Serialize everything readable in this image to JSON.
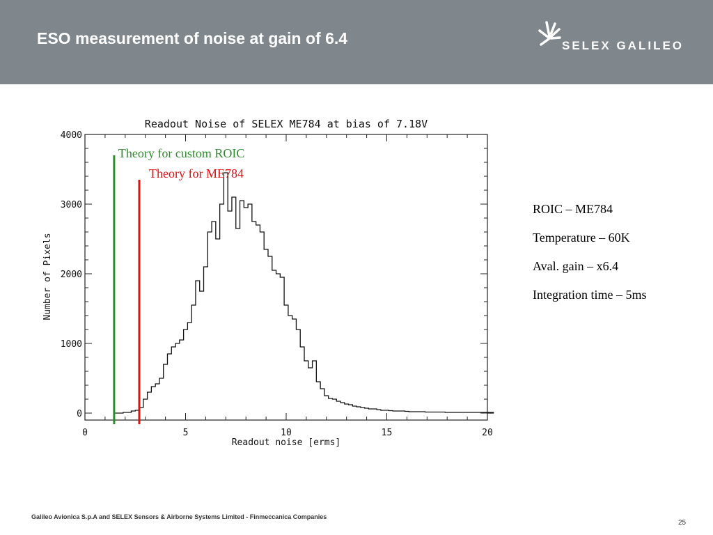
{
  "slide": {
    "title": "ESO measurement of noise at gain of 6.4",
    "logo_text": "SELEX GALILEO",
    "info_lines": [
      "ROIC – ME784",
      "Temperature – 60K",
      "Aval. gain – x6.4",
      "Integration time – 5ms"
    ],
    "footer": "Galileo Avionica S.p.A and SELEX Sensors & Airborne Systems Limited - Finmeccanica Companies",
    "page_number": "25"
  },
  "chart_data": {
    "type": "histogram",
    "title": "Readout Noise of SELEX ME784 at bias of 7.18V",
    "xlabel": "Readout noise [erms]",
    "ylabel": "Number of Pixels",
    "xlim": [
      0,
      20
    ],
    "ylim": [
      -100,
      4000
    ],
    "xticks": [
      "0",
      "5",
      "10",
      "15",
      "20"
    ],
    "yticks": [
      "0",
      "1000",
      "2000",
      "3000",
      "4000"
    ],
    "grid": false,
    "bin_start": 1.5,
    "bin_width": 0.2,
    "counts": [
      0,
      0,
      10,
      10,
      30,
      40,
      80,
      200,
      300,
      380,
      420,
      500,
      700,
      850,
      950,
      1000,
      1050,
      1200,
      1300,
      1550,
      1900,
      1750,
      2100,
      2600,
      2750,
      2500,
      3000,
      3450,
      2900,
      3100,
      2650,
      3050,
      2950,
      3000,
      2750,
      2700,
      2600,
      2350,
      2250,
      2050,
      2000,
      1950,
      1550,
      1400,
      1350,
      1200,
      950,
      750,
      650,
      750,
      450,
      350,
      250,
      210,
      200,
      170,
      150,
      130,
      120,
      100,
      90,
      80,
      70,
      60,
      60,
      50,
      40,
      40,
      35,
      30,
      30,
      30,
      25,
      20,
      20,
      20,
      20,
      15,
      15,
      15,
      15,
      15,
      10,
      10,
      10,
      10,
      10,
      10,
      10,
      10,
      10,
      10,
      10,
      10
    ],
    "annotations": [
      {
        "name": "custom-roic",
        "label": "Theory for custom ROIC",
        "x": 1.45,
        "y_top": 3700,
        "color": "#2e8b2e"
      },
      {
        "name": "me784",
        "label": "Theory for ME784",
        "x": 2.7,
        "y_top": 3350,
        "color": "#dd1111"
      }
    ]
  }
}
